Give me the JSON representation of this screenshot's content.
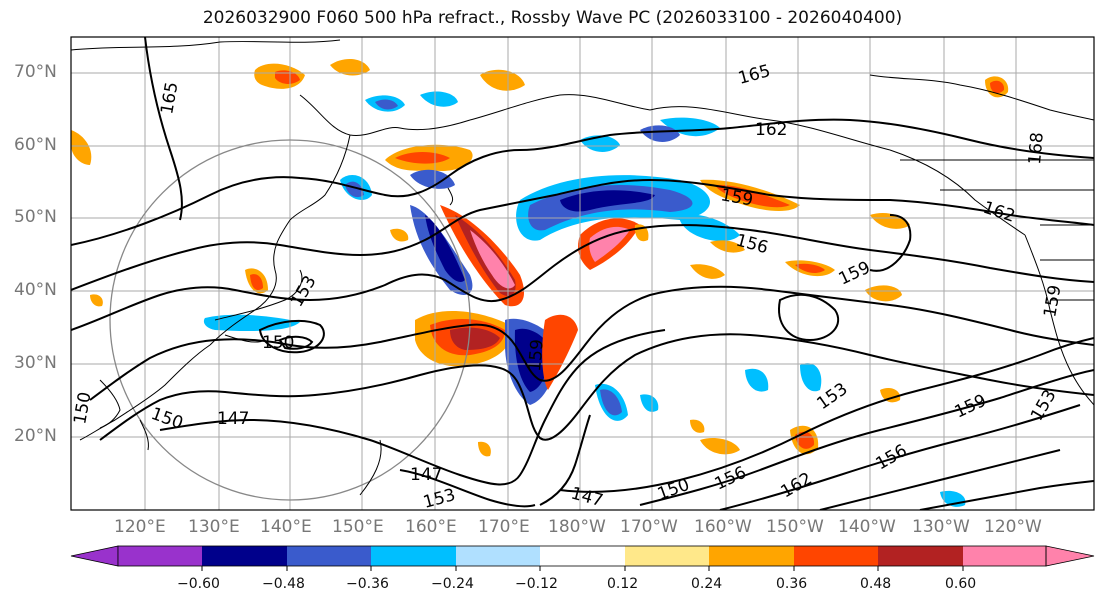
{
  "title": "2026032900 F060 500 hPa refract., Rossby Wave PC (2026033100 - 2026040400)",
  "lat_labels": [
    "70°N",
    "60°N",
    "50°N",
    "40°N",
    "30°N",
    "20°N"
  ],
  "lon_labels": [
    "120°E",
    "130°E",
    "140°E",
    "150°E",
    "160°E",
    "170°E",
    "180°W",
    "170°W",
    "160°W",
    "150°W",
    "140°W",
    "130°W",
    "120°W"
  ],
  "contour_labels": [
    "165",
    "162",
    "159",
    "156",
    "153",
    "150",
    "147",
    "168"
  ],
  "colorbar": {
    "ticks": [
      "−0.60",
      "−0.48",
      "−0.36",
      "−0.24",
      "−0.12",
      "0.12",
      "0.24",
      "0.36",
      "0.48",
      "0.60"
    ],
    "colors": [
      "#9932CC",
      "#00008B",
      "#3A5BCC",
      "#00BFFF",
      "#B0E0FF",
      "#FFFFFF",
      "#FFE88A",
      "#FFA500",
      "#FF4500",
      "#B22222",
      "#FF82AB"
    ]
  }
}
